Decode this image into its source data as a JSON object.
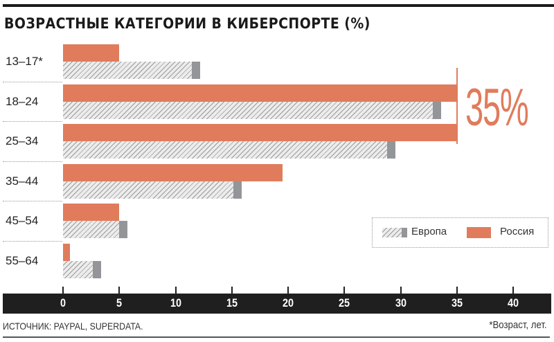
{
  "title": "ВОЗРАСТНЫЕ КАТЕГОРИИ В КИБЕРСПОРТЕ (%)",
  "highlight_label": "35%",
  "legend": {
    "europe": "Европа",
    "russia": "Россия"
  },
  "axis": {
    "ticks": [
      "0",
      "5",
      "10",
      "15",
      "20",
      "25",
      "30",
      "35",
      "40"
    ]
  },
  "source": "ИСТОЧНИК: PAYPAL, SUPERDATA.",
  "footnote": "*Возраст, лет.",
  "colors": {
    "russia": "#e07c5c",
    "europe_cap": "#939598",
    "axis_band": "#1f1f1f"
  },
  "chart_data": {
    "type": "bar",
    "orientation": "horizontal",
    "title": "ВОЗРАСТНЫЕ КАТЕГОРИИ В КИБЕРСПОРТЕ (%)",
    "categories": [
      "13–17*",
      "18–24",
      "25–34",
      "35–44",
      "45–54",
      "55–64"
    ],
    "series": [
      {
        "name": "Россия",
        "values": [
          5,
          35,
          35,
          19.5,
          5,
          0.6
        ]
      },
      {
        "name": "Европа",
        "values": [
          12.2,
          33.6,
          29.5,
          15.9,
          5.7,
          3.4
        ]
      }
    ],
    "xlabel": "",
    "ylabel": "",
    "xlim": [
      0,
      40
    ],
    "x_ticks": [
      0,
      5,
      10,
      15,
      20,
      25,
      30,
      35,
      40
    ],
    "annotations": [
      "35%"
    ],
    "legend_position": "lower right",
    "grid": false,
    "source": "ИСТОЧНИК: PAYPAL, SUPERDATA.",
    "footnote": "*Возраст, лет."
  }
}
